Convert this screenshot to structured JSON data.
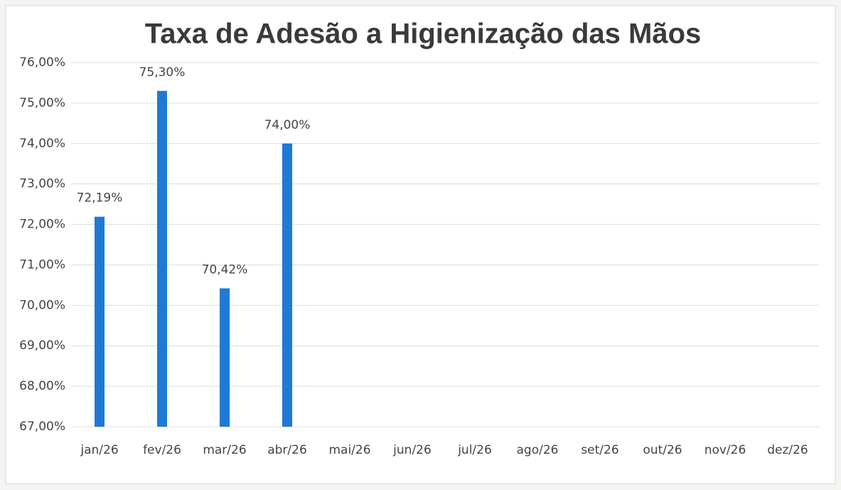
{
  "chart_data": {
    "type": "bar",
    "title": "Taxa de Adesão a Higienização das Mãos",
    "categories": [
      "jan/26",
      "fev/26",
      "mar/26",
      "abr/26",
      "mai/26",
      "jun/26",
      "jul/26",
      "ago/26",
      "set/26",
      "out/26",
      "nov/26",
      "dez/26"
    ],
    "values": [
      72.19,
      75.3,
      70.42,
      74.0,
      null,
      null,
      null,
      null,
      null,
      null,
      null,
      null
    ],
    "value_labels": [
      "72,19%",
      "75,30%",
      "70,42%",
      "74,00%",
      null,
      null,
      null,
      null,
      null,
      null,
      null,
      null
    ],
    "color": "#1f7ad6",
    "ylim": [
      67,
      76
    ],
    "yticks": [
      {
        "value": 67,
        "label": "67,00%"
      },
      {
        "value": 68,
        "label": "68,00%"
      },
      {
        "value": 69,
        "label": "69,00%"
      },
      {
        "value": 70,
        "label": "70,00%"
      },
      {
        "value": 71,
        "label": "71,00%"
      },
      {
        "value": 72,
        "label": "72,00%"
      },
      {
        "value": 73,
        "label": "73,00%"
      },
      {
        "value": 74,
        "label": "74,00%"
      },
      {
        "value": 75,
        "label": "75,00%"
      },
      {
        "value": 76,
        "label": "76,00%"
      }
    ],
    "grid": true
  }
}
